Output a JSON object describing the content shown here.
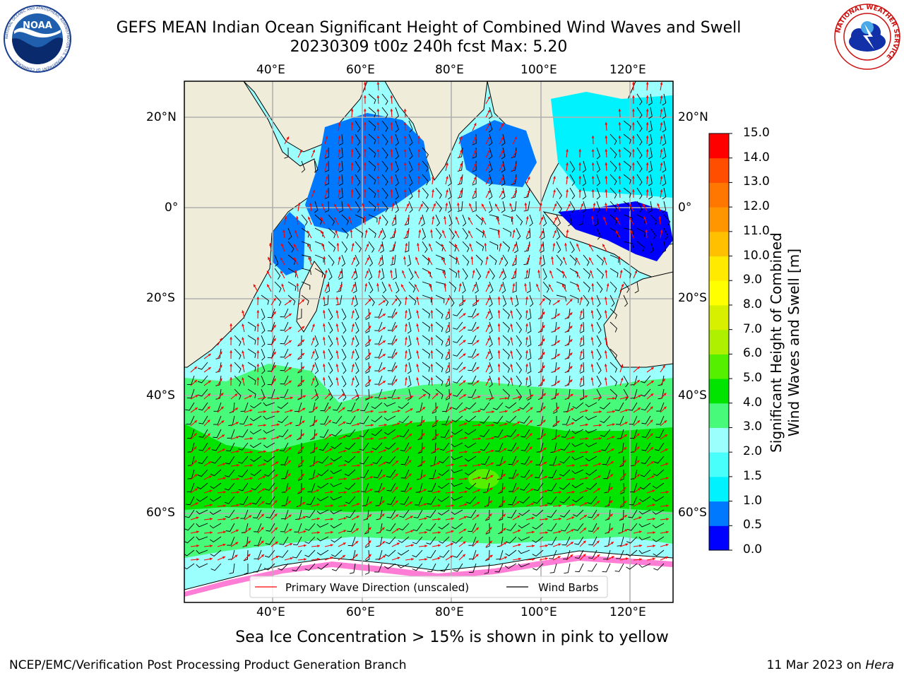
{
  "header": {
    "title_line1": "GEFS MEAN Indian Ocean Significant Height of Combined Wind Waves and Swell",
    "title_line2": "20230309 t00z 240h fcst   Max: 5.20"
  },
  "logos": {
    "left": {
      "name": "noaa-logo",
      "text": "NOAA",
      "ring_text": "NATIONAL OCEANIC AND ATMOSPHERIC ADMINISTRATION  U.S. DEPARTMENT OF COMMERCE"
    },
    "right": {
      "name": "nws-logo",
      "ring_text": "NATIONAL WEATHER SERVICE"
    }
  },
  "map": {
    "lon_ticks": [
      "40°E",
      "60°E",
      "80°E",
      "100°E",
      "120°E"
    ],
    "lat_ticks": [
      "20°N",
      "0°",
      "20°S",
      "40°S",
      "60°S"
    ],
    "colors": {
      "land": "#efecda",
      "ice_pink": "#ff66cc",
      "ice_yellow": "#ffff00",
      "arrow": "#ff0000",
      "barb": "#000000",
      "grid": "#b0b0b0"
    }
  },
  "legend": {
    "wave_direction": "Primary Wave Direction (unscaled)",
    "wind_barbs": "Wind Barbs"
  },
  "colorbar": {
    "label_line1": "Significant Height of Combined",
    "label_line2": "Wind Waves and Swell [m]",
    "ticks": [
      "0.0",
      "0.5",
      "1.0",
      "1.5",
      "2.0",
      "3.0",
      "4.0",
      "5.0",
      "6.0",
      "7.0",
      "8.0",
      "9.0",
      "10.0",
      "11.0",
      "12.0",
      "13.0",
      "14.0",
      "15.0"
    ],
    "colors": [
      "#0000ff",
      "#0079ff",
      "#00f2ff",
      "#48fffb",
      "#9bfffe",
      "#48fa7a",
      "#00e400",
      "#55f000",
      "#aef000",
      "#d6f000",
      "#ffff00",
      "#ffea00",
      "#ffc000",
      "#ff9600",
      "#ff7600",
      "#ff4e00",
      "#ff0000"
    ]
  },
  "caption": "Sea Ice Concentration > 15% is shown in pink to yellow",
  "footer": {
    "left": "NCEP/EMC/Verification Post Processing Product Generation Branch",
    "right_date": "11 Mar 2023 on",
    "right_host": "Hera"
  }
}
